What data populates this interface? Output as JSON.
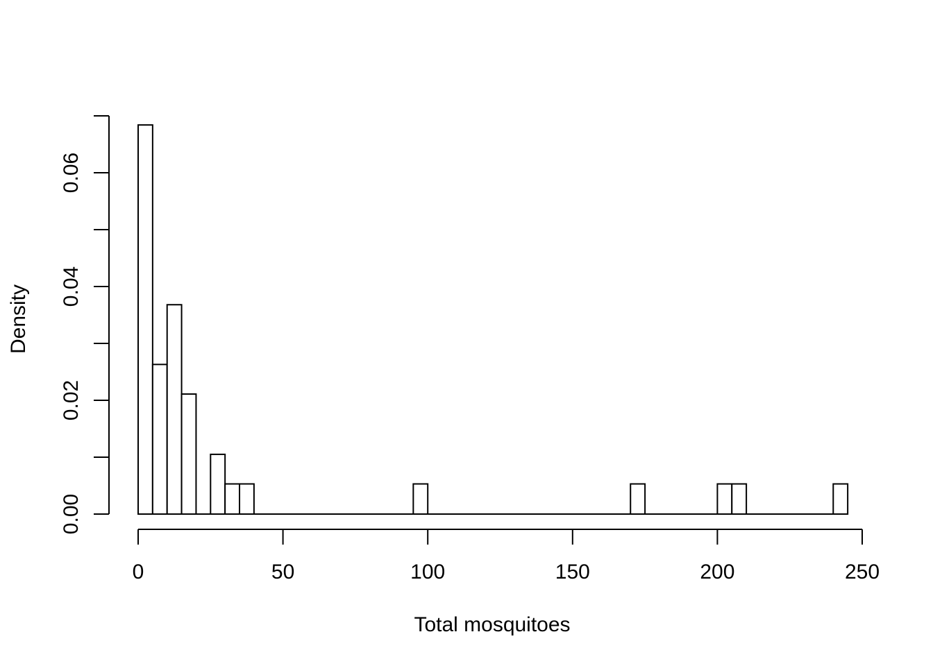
{
  "chart_data": {
    "type": "bar",
    "title": "",
    "xlabel": "Total mosquitoes",
    "ylabel": "Density",
    "bin_width": 5,
    "x": [
      0,
      5,
      10,
      15,
      20,
      25,
      30,
      35,
      95,
      170,
      200,
      205,
      240
    ],
    "values": [
      0.0684,
      0.0263,
      0.0368,
      0.0211,
      0,
      0.0105,
      0.0053,
      0.0053,
      0.0053,
      0.0053,
      0.0053,
      0.0053,
      0.0053
    ],
    "xlim": [
      0,
      250
    ],
    "ylim": [
      0,
      0.07
    ],
    "x_ticks": [
      "0",
      "50",
      "100",
      "150",
      "200",
      "250"
    ],
    "x_tick_values": [
      0,
      50,
      100,
      150,
      200,
      250
    ],
    "y_ticks": [
      "0.00",
      "0.02",
      "0.04",
      "0.06"
    ],
    "y_tick_values": [
      0,
      0.02,
      0.04,
      0.06
    ],
    "y_minor_tick_values": [
      0,
      0.01,
      0.02,
      0.03,
      0.04,
      0.05,
      0.06,
      0.07
    ],
    "grid": false,
    "legend": "none"
  }
}
